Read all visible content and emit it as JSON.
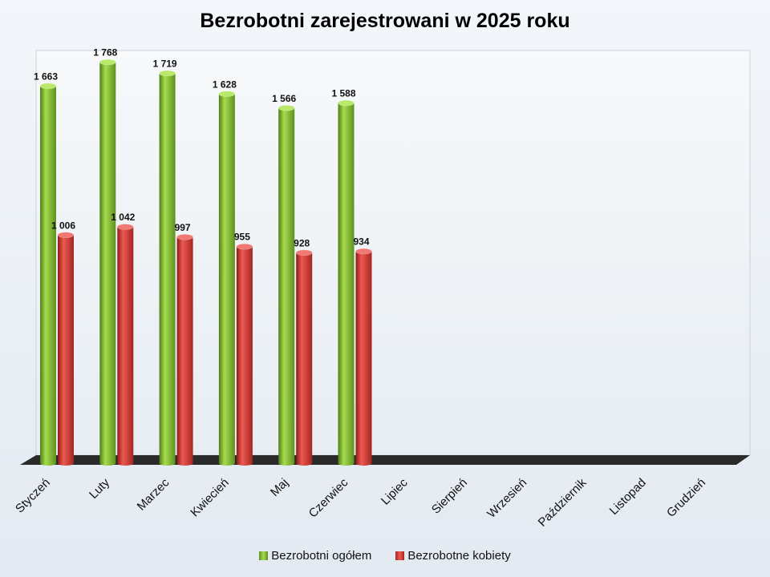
{
  "chart_data": {
    "type": "bar",
    "title": "Bezrobotni zarejestrowani w 2025 roku",
    "categories": [
      "Styczeń",
      "Luty",
      "Marzec",
      "Kwiecień",
      "Maj",
      "Czerwiec",
      "Lipiec",
      "Sierpień",
      "Wrzesień",
      "Październik",
      "Listopad",
      "Grudzień"
    ],
    "series": [
      {
        "name": "Bezrobotni ogółem",
        "values": [
          1663,
          1768,
          1719,
          1628,
          1566,
          1588,
          null,
          null,
          null,
          null,
          null,
          null
        ],
        "labels": [
          "1 663",
          "1 768",
          "1 719",
          "1 628",
          "1 566",
          "1 588",
          "",
          "",
          "",
          "",
          "",
          ""
        ],
        "color": "#7cb82f"
      },
      {
        "name": "Bezrobotne kobiety",
        "values": [
          1006,
          1042,
          997,
          955,
          928,
          934,
          null,
          null,
          null,
          null,
          null,
          null
        ],
        "labels": [
          "1 006",
          "1 042",
          "997",
          "955",
          "928",
          "934",
          "",
          "",
          "",
          "",
          "",
          ""
        ],
        "color": "#d2322d"
      }
    ],
    "ylim": [
      0,
      1900
    ],
    "grid": false,
    "legend_position": "bottom",
    "xlabel": "",
    "ylabel": ""
  }
}
